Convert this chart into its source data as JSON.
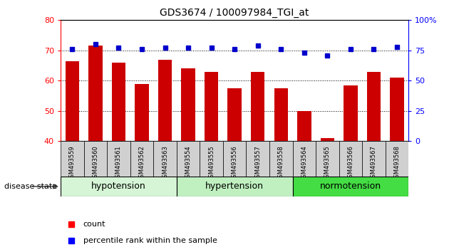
{
  "title": "GDS3674 / 100097984_TGI_at",
  "samples": [
    "GSM493559",
    "GSM493560",
    "GSM493561",
    "GSM493562",
    "GSM493563",
    "GSM493554",
    "GSM493555",
    "GSM493556",
    "GSM493557",
    "GSM493558",
    "GSM493564",
    "GSM493565",
    "GSM493566",
    "GSM493567",
    "GSM493568"
  ],
  "count_values": [
    66.5,
    71.5,
    66.0,
    59.0,
    67.0,
    64.0,
    63.0,
    57.5,
    63.0,
    57.5,
    50.0,
    41.0,
    58.5,
    63.0,
    61.0
  ],
  "percentile_values": [
    76,
    80,
    77,
    76,
    77,
    77,
    77,
    76,
    79,
    76,
    73,
    71,
    76,
    76,
    78
  ],
  "group_info": [
    {
      "label": "hypotension",
      "start": 0,
      "end": 5,
      "color": "#d6f5d6"
    },
    {
      "label": "hypertension",
      "start": 5,
      "end": 10,
      "color": "#c0f0c0"
    },
    {
      "label": "normotension",
      "start": 10,
      "end": 15,
      "color": "#44dd44"
    }
  ],
  "ylim_left": [
    40,
    80
  ],
  "ylim_right": [
    0,
    100
  ],
  "yticks_left": [
    40,
    50,
    60,
    70,
    80
  ],
  "yticks_right": [
    0,
    25,
    50,
    75,
    100
  ],
  "bar_color": "#CC0000",
  "dot_color": "#0000CC",
  "bg_color": "#ffffff",
  "bar_width": 0.6,
  "xtick_bg": "#d0d0d0"
}
